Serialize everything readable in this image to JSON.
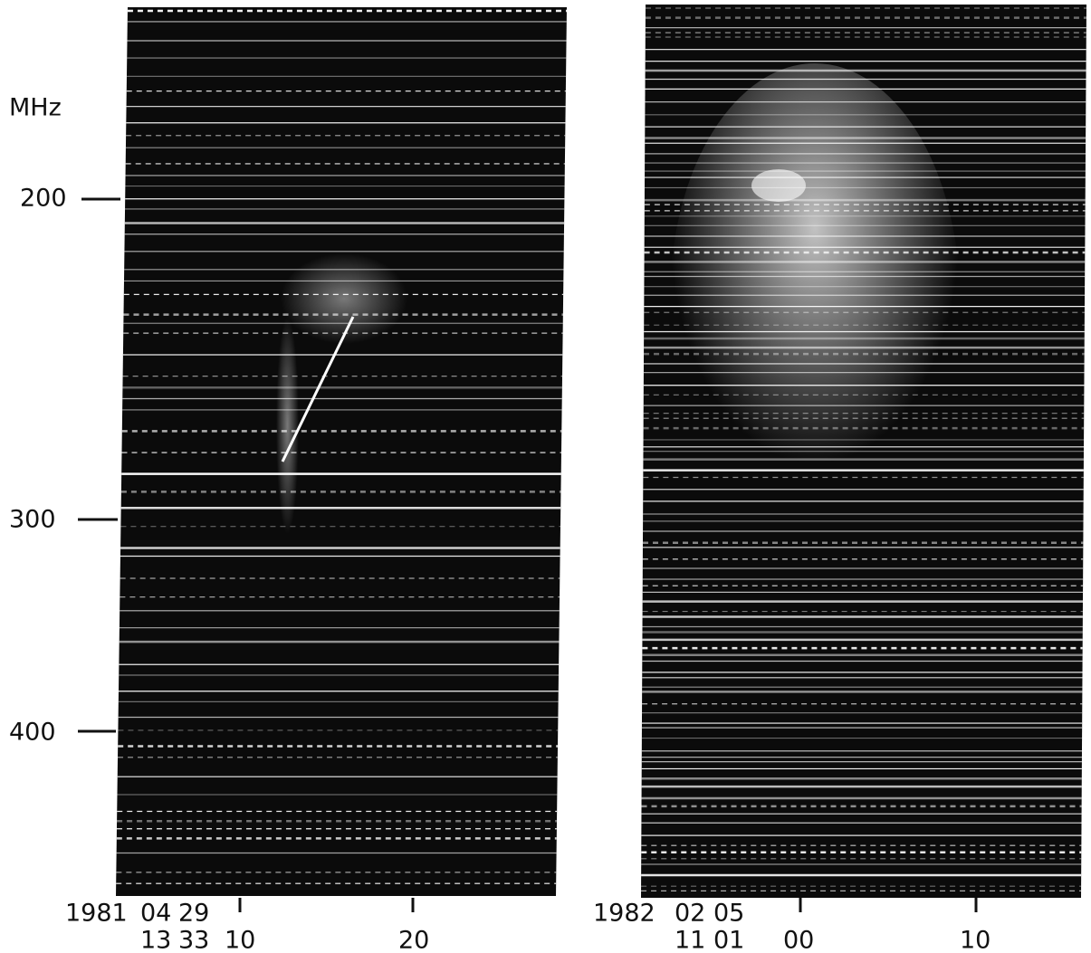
{
  "axis": {
    "unit": "MHz",
    "ticks": [
      "200",
      "300",
      "400"
    ]
  },
  "panels": [
    {
      "date": [
        "1981",
        "04",
        "29"
      ],
      "time": [
        "13",
        "33"
      ],
      "ticks": [
        "10",
        "20"
      ]
    },
    {
      "date": [
        "1982",
        "02",
        "05"
      ],
      "time": [
        "11",
        "01"
      ],
      "ticks": [
        "00",
        "10"
      ]
    }
  ]
}
